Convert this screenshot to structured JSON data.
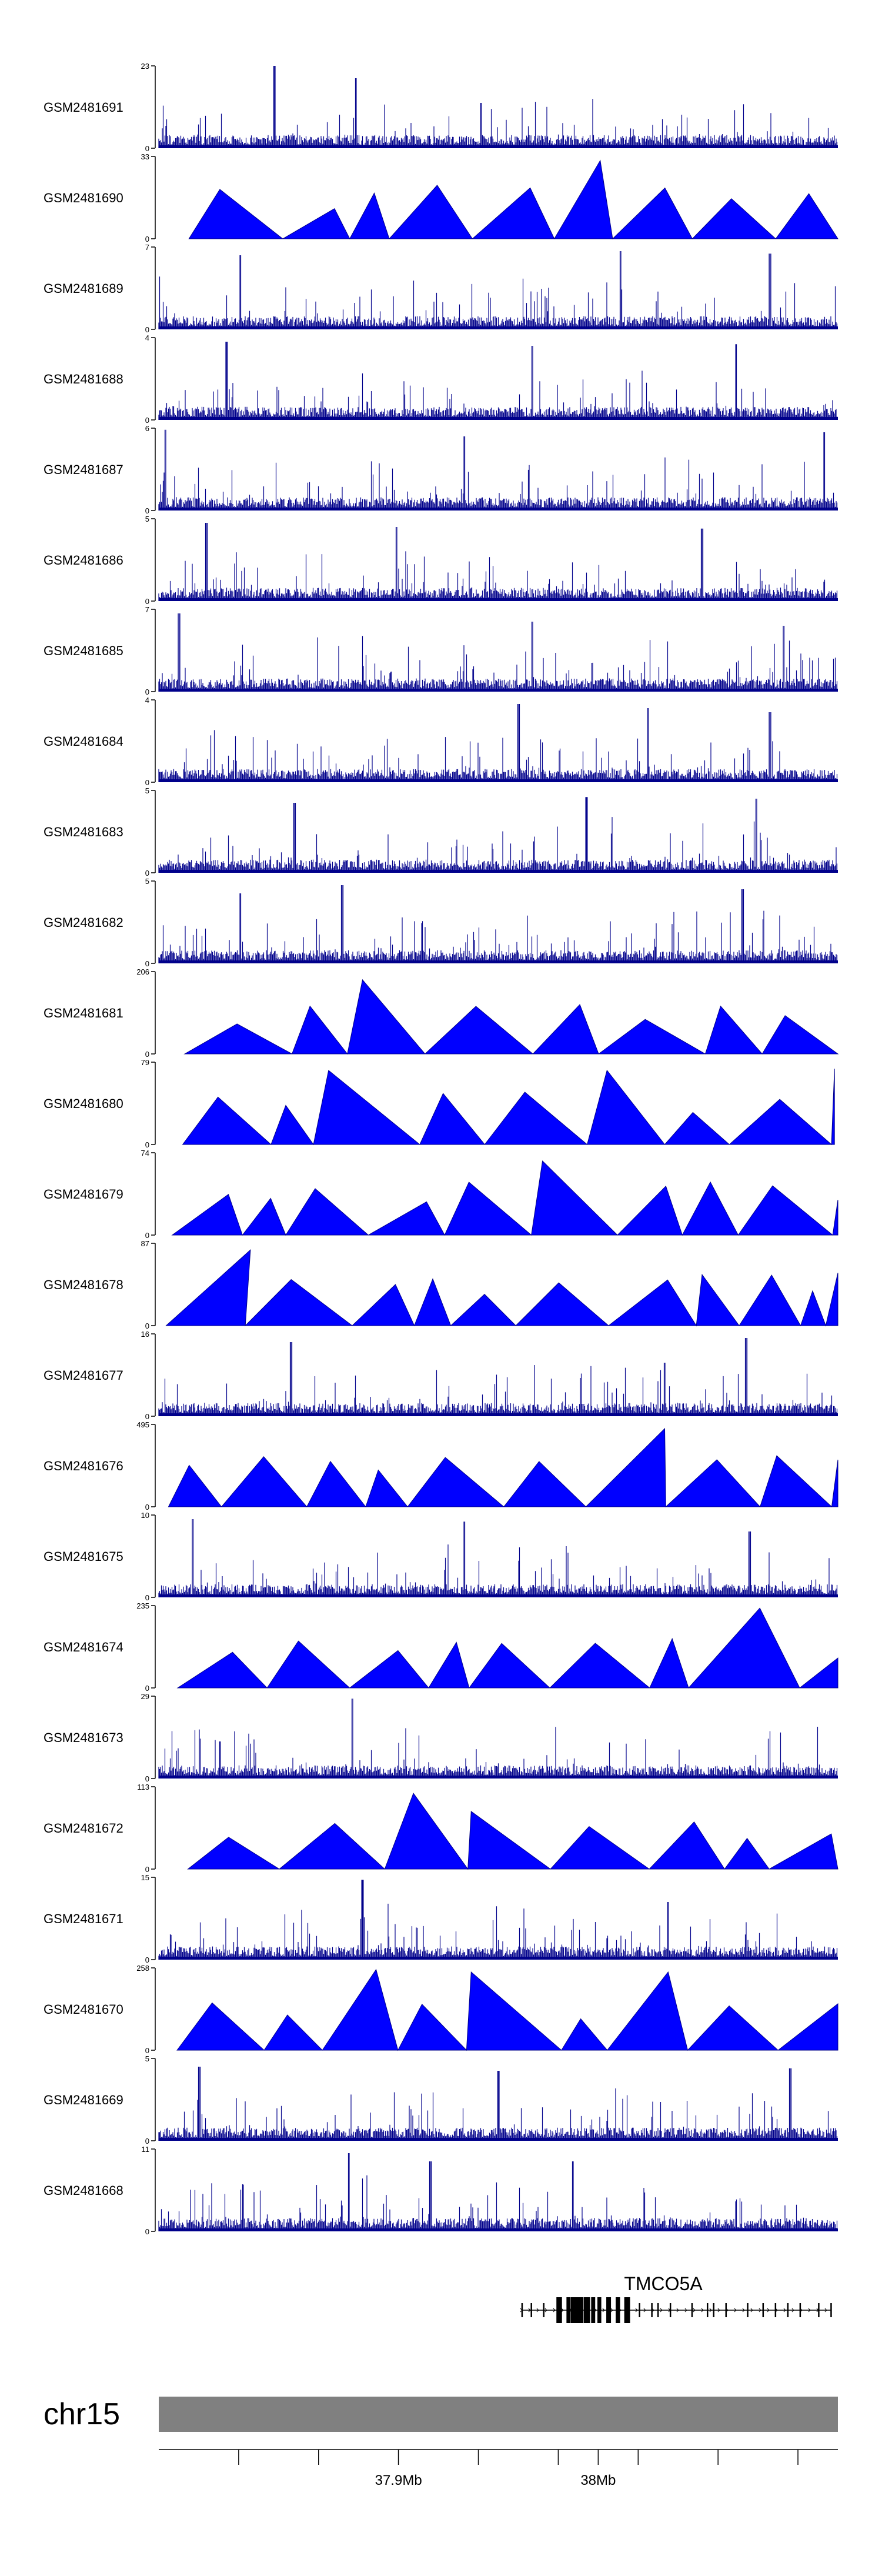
{
  "chart_data": {
    "type": "area",
    "title": "",
    "color_fill": "#0000FF",
    "color_line": "#00008B",
    "color_axis": "#000000",
    "color_ideogram": "#808080",
    "tracks": [
      {
        "name": "GSM2481691",
        "ymin": 0,
        "ymax": 23,
        "style": "dense",
        "peaks": [
          {
            "x": 0.17,
            "h": 1.0
          },
          {
            "x": 0.29,
            "h": 0.85
          },
          {
            "x": 0.475,
            "h": 0.55
          }
        ]
      },
      {
        "name": "GSM2481690",
        "ymin": 0,
        "ymax": 33,
        "style": "tri",
        "peaks": [
          {
            "x": 0.09,
            "h": 0.6
          },
          {
            "x": 0.41,
            "h": 0.65
          },
          {
            "x": 0.65,
            "h": 0.95
          }
        ]
      },
      {
        "name": "GSM2481689",
        "ymin": 0,
        "ymax": 7,
        "style": "dense",
        "peaks": [
          {
            "x": 0.12,
            "h": 0.9
          },
          {
            "x": 0.68,
            "h": 0.95
          },
          {
            "x": 0.9,
            "h": 0.92
          }
        ]
      },
      {
        "name": "GSM2481688",
        "ymin": 0,
        "ymax": 4,
        "style": "dense",
        "peaks": [
          {
            "x": 0.1,
            "h": 0.95
          },
          {
            "x": 0.55,
            "h": 0.9
          },
          {
            "x": 0.85,
            "h": 0.92
          }
        ]
      },
      {
        "name": "GSM2481687",
        "ymin": 0,
        "ymax": 6,
        "style": "dense",
        "peaks": [
          {
            "x": 0.01,
            "h": 0.98
          },
          {
            "x": 0.45,
            "h": 0.9
          },
          {
            "x": 0.98,
            "h": 0.95
          }
        ]
      },
      {
        "name": "GSM2481686",
        "ymin": 0,
        "ymax": 5,
        "style": "dense",
        "peaks": [
          {
            "x": 0.07,
            "h": 0.95
          },
          {
            "x": 0.35,
            "h": 0.9
          },
          {
            "x": 0.8,
            "h": 0.88
          }
        ]
      },
      {
        "name": "GSM2481685",
        "ymin": 0,
        "ymax": 7,
        "style": "dense",
        "peaks": [
          {
            "x": 0.03,
            "h": 0.95
          },
          {
            "x": 0.55,
            "h": 0.85
          },
          {
            "x": 0.92,
            "h": 0.8
          }
        ]
      },
      {
        "name": "GSM2481684",
        "ymin": 0,
        "ymax": 4,
        "style": "dense",
        "peaks": [
          {
            "x": 0.53,
            "h": 0.95
          },
          {
            "x": 0.72,
            "h": 0.9
          },
          {
            "x": 0.9,
            "h": 0.85
          }
        ]
      },
      {
        "name": "GSM2481683",
        "ymin": 0,
        "ymax": 5,
        "style": "dense",
        "peaks": [
          {
            "x": 0.2,
            "h": 0.85
          },
          {
            "x": 0.63,
            "h": 0.92
          },
          {
            "x": 0.88,
            "h": 0.9
          }
        ]
      },
      {
        "name": "GSM2481682",
        "ymin": 0,
        "ymax": 5,
        "style": "dense",
        "peaks": [
          {
            "x": 0.12,
            "h": 0.85
          },
          {
            "x": 0.27,
            "h": 0.95
          },
          {
            "x": 0.86,
            "h": 0.9
          }
        ]
      },
      {
        "name": "GSM2481681",
        "ymin": 0,
        "ymax": 206,
        "style": "tri",
        "peaks": [
          {
            "x": 0.3,
            "h": 0.9
          },
          {
            "x": 0.62,
            "h": 0.6
          }
        ]
      },
      {
        "name": "GSM2481680",
        "ymin": 0,
        "ymax": 79,
        "style": "tri",
        "peaks": [
          {
            "x": 0.25,
            "h": 0.9
          },
          {
            "x": 0.66,
            "h": 0.9
          },
          {
            "x": 0.995,
            "h": 0.92
          }
        ]
      },
      {
        "name": "GSM2481679",
        "ymin": 0,
        "ymax": 74,
        "style": "tri",
        "peaks": [
          {
            "x": 0.565,
            "h": 0.9
          }
        ]
      },
      {
        "name": "GSM2481678",
        "ymin": 0,
        "ymax": 87,
        "style": "tri",
        "peaks": [
          {
            "x": 0.135,
            "h": 0.92
          },
          {
            "x": 0.8,
            "h": 0.62
          }
        ]
      },
      {
        "name": "GSM2481677",
        "ymin": 0,
        "ymax": 16,
        "style": "dense",
        "peaks": [
          {
            "x": 0.195,
            "h": 0.9
          },
          {
            "x": 0.865,
            "h": 0.95
          },
          {
            "x": 0.745,
            "h": 0.65
          }
        ]
      },
      {
        "name": "GSM2481676",
        "ymin": 0,
        "ymax": 495,
        "style": "tri",
        "peaks": [
          {
            "x": 0.745,
            "h": 0.95
          },
          {
            "x": 0.56,
            "h": 0.55
          }
        ]
      },
      {
        "name": "GSM2481675",
        "ymin": 0,
        "ymax": 10,
        "style": "dense",
        "peaks": [
          {
            "x": 0.05,
            "h": 0.95
          },
          {
            "x": 0.45,
            "h": 0.92
          },
          {
            "x": 0.87,
            "h": 0.8
          }
        ]
      },
      {
        "name": "GSM2481674",
        "ymin": 0,
        "ymax": 235,
        "style": "tri",
        "peaks": [
          {
            "x": 0.885,
            "h": 0.97
          }
        ]
      },
      {
        "name": "GSM2481673",
        "ymin": 0,
        "ymax": 29,
        "style": "dense",
        "peaks": [
          {
            "x": 0.285,
            "h": 0.97
          },
          {
            "x": 0.09,
            "h": 0.45
          }
        ]
      },
      {
        "name": "GSM2481672",
        "ymin": 0,
        "ymax": 113,
        "style": "tri",
        "peaks": [
          {
            "x": 0.375,
            "h": 0.92
          },
          {
            "x": 0.46,
            "h": 0.7
          }
        ]
      },
      {
        "name": "GSM2481671",
        "ymin": 0,
        "ymax": 15,
        "style": "dense",
        "peaks": [
          {
            "x": 0.3,
            "h": 0.97
          },
          {
            "x": 0.75,
            "h": 0.7
          }
        ]
      },
      {
        "name": "GSM2481670",
        "ymin": 0,
        "ymax": 258,
        "style": "tri",
        "peaks": [
          {
            "x": 0.32,
            "h": 0.98
          },
          {
            "x": 0.46,
            "h": 0.95
          },
          {
            "x": 0.75,
            "h": 0.95
          }
        ]
      },
      {
        "name": "GSM2481669",
        "ymin": 0,
        "ymax": 5,
        "style": "dense",
        "peaks": [
          {
            "x": 0.06,
            "h": 0.9
          },
          {
            "x": 0.5,
            "h": 0.85
          },
          {
            "x": 0.93,
            "h": 0.88
          }
        ]
      },
      {
        "name": "GSM2481668",
        "ymin": 0,
        "ymax": 11,
        "style": "dense",
        "peaks": [
          {
            "x": 0.28,
            "h": 0.95
          },
          {
            "x": 0.4,
            "h": 0.85
          },
          {
            "x": 0.61,
            "h": 0.85
          }
        ]
      }
    ],
    "gene": {
      "name": "TMCO5A",
      "start": 0.535,
      "end": 0.99,
      "strand": "+"
    },
    "ideogram": {
      "chrom": "chr15"
    },
    "axis": {
      "range_mb": [
        37.78,
        38.12
      ],
      "ticks": [
        37.82,
        37.86,
        37.9,
        37.94,
        37.98,
        38.02,
        38.06,
        38.1
      ],
      "labeled_ticks": [
        {
          "value": 37.9,
          "label": "37.9Mb"
        },
        {
          "value": 38.0,
          "label": "38Mb"
        }
      ]
    }
  }
}
